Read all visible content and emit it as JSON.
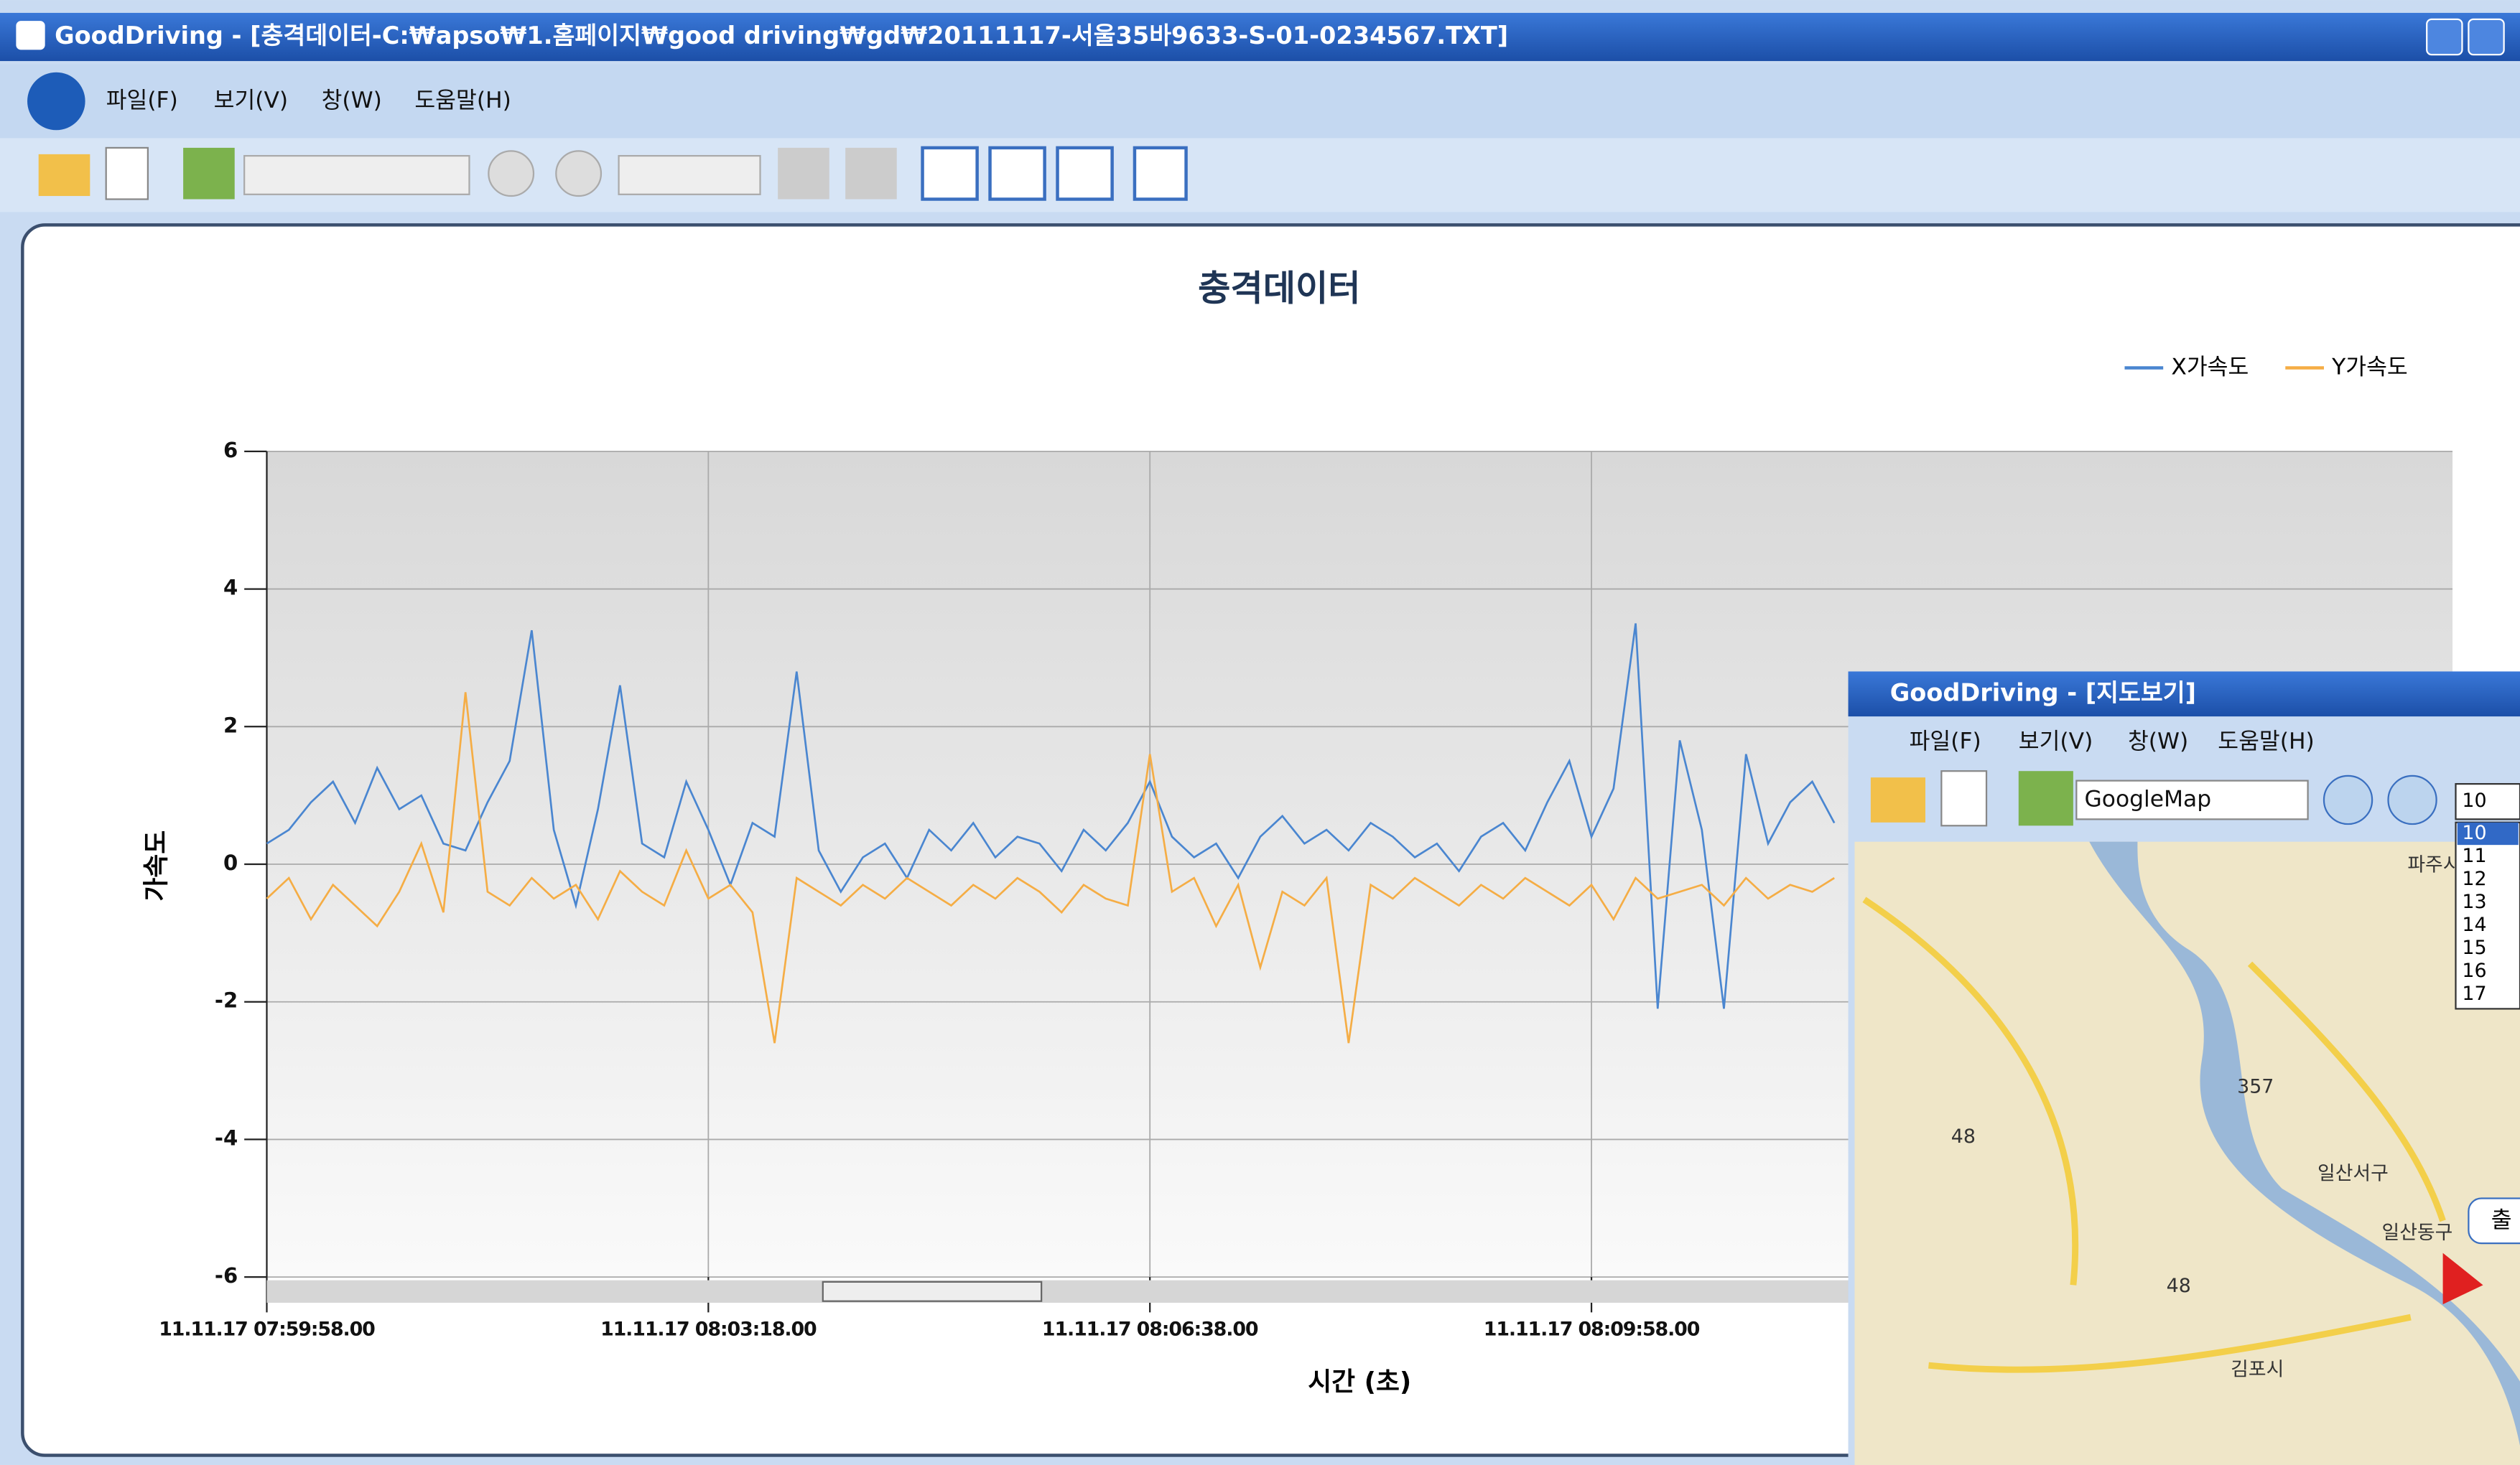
{
  "window": {
    "title": "GoodDriving - [충격데이터-C:₩apso₩1.홈페이지₩good driving₩gd₩20111117-서울35바9633-S-01-0234567.TXT]",
    "menu": [
      "파일(F)",
      "보기(V)",
      "창(W)",
      "도움말(H)"
    ]
  },
  "chart_data": {
    "type": "line",
    "title": "충격데이터",
    "x_label": "시간 (초)",
    "y_label": "가속도",
    "legend": "top-right",
    "grid": true,
    "xlim": [
      0,
      990
    ],
    "xticks": [
      {
        "value": 0,
        "label": "11.11.17 07:59:58.00"
      },
      {
        "value": 200,
        "label": "11.11.17 08:03:18.00"
      },
      {
        "value": 400,
        "label": "11.11.17 08:06:38.00"
      },
      {
        "value": 600,
        "label": "11.11.17 08:09:58.00"
      }
    ],
    "ylim": [
      -6,
      6
    ],
    "yticks": [
      -6,
      -4,
      -2,
      0,
      2,
      4,
      6
    ],
    "x": [
      0,
      10,
      20,
      30,
      40,
      50,
      60,
      70,
      80,
      90,
      100,
      110,
      120,
      130,
      140,
      150,
      160,
      170,
      180,
      190,
      200,
      210,
      220,
      230,
      240,
      250,
      260,
      270,
      280,
      290,
      300,
      310,
      320,
      330,
      340,
      350,
      360,
      370,
      380,
      390,
      400,
      410,
      420,
      430,
      440,
      450,
      460,
      470,
      480,
      490,
      500,
      510,
      520,
      530,
      540,
      550,
      560,
      570,
      580,
      590,
      600,
      610,
      620,
      630,
      640,
      650,
      660,
      670,
      680,
      690,
      700,
      710
    ],
    "series": [
      {
        "name": "X가속도",
        "color": "#4a86d0",
        "values": [
          0.3,
          0.5,
          0.9,
          1.2,
          0.6,
          1.4,
          0.8,
          1.0,
          0.3,
          0.2,
          0.9,
          1.5,
          3.4,
          0.5,
          -0.6,
          0.8,
          2.6,
          0.3,
          0.1,
          1.2,
          0.5,
          -0.3,
          0.6,
          0.4,
          2.8,
          0.2,
          -0.4,
          0.1,
          0.3,
          -0.2,
          0.5,
          0.2,
          0.6,
          0.1,
          0.4,
          0.3,
          -0.1,
          0.5,
          0.2,
          0.6,
          1.2,
          0.4,
          0.1,
          0.3,
          -0.2,
          0.4,
          0.7,
          0.3,
          0.5,
          0.2,
          0.6,
          0.4,
          0.1,
          0.3,
          -0.1,
          0.4,
          0.6,
          0.2,
          0.9,
          1.5,
          0.4,
          1.1,
          3.5,
          -2.1,
          1.8,
          0.5,
          -2.1,
          1.6,
          0.3,
          0.9,
          1.2,
          0.6
        ]
      },
      {
        "name": "Y가속도",
        "color": "#f5ad45",
        "values": [
          -0.5,
          -0.2,
          -0.8,
          -0.3,
          -0.6,
          -0.9,
          -0.4,
          0.3,
          -0.7,
          2.5,
          -0.4,
          -0.6,
          -0.2,
          -0.5,
          -0.3,
          -0.8,
          -0.1,
          -0.4,
          -0.6,
          0.2,
          -0.5,
          -0.3,
          -0.7,
          -2.6,
          -0.2,
          -0.4,
          -0.6,
          -0.3,
          -0.5,
          -0.2,
          -0.4,
          -0.6,
          -0.3,
          -0.5,
          -0.2,
          -0.4,
          -0.7,
          -0.3,
          -0.5,
          -0.6,
          1.6,
          -0.4,
          -0.2,
          -0.9,
          -0.3,
          -1.5,
          -0.4,
          -0.6,
          -0.2,
          -2.6,
          -0.3,
          -0.5,
          -0.2,
          -0.4,
          -0.6,
          -0.3,
          -0.5,
          -0.2,
          -0.4,
          -0.6,
          -0.3,
          -0.8,
          -0.2,
          -0.5,
          -0.4,
          -0.3,
          -0.6,
          -0.2,
          -0.5,
          -0.3,
          -0.4,
          -0.2
        ]
      }
    ]
  },
  "map_window": {
    "title": "GoodDriving - [지도보기]",
    "menu": [
      "파일(F)",
      "보기(V)",
      "창(W)",
      "도움말(H)"
    ],
    "map_type": "GoogleMap",
    "zoom_current": "10",
    "zoom_options": [
      "10",
      "11",
      "12",
      "13",
      "14",
      "15",
      "16",
      "17"
    ],
    "places": [
      "파주시",
      "일산서구",
      "일산동구",
      "김포시"
    ],
    "route_numbers": [
      "357",
      "48",
      "48"
    ],
    "marker_label": "출"
  }
}
